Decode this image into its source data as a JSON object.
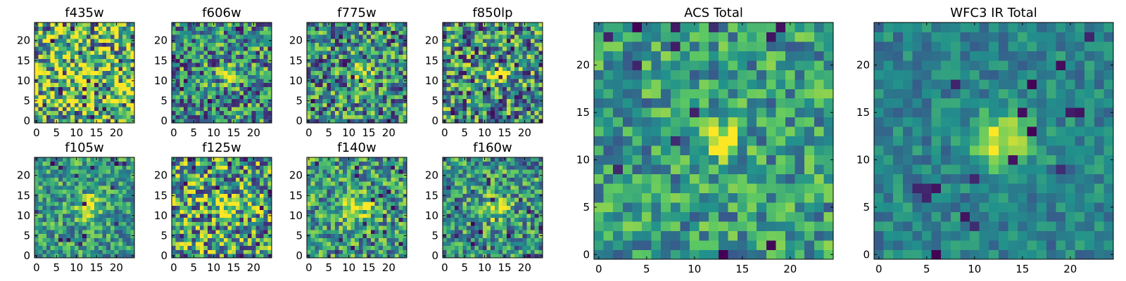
{
  "figure": {
    "colormap": "viridis",
    "colormap_stops": [
      "#440154",
      "#3b528b",
      "#21918c",
      "#5ec962",
      "#fde725"
    ]
  },
  "chart_data": [
    {
      "type": "heatmap",
      "title": "f435w",
      "grid": [
        25,
        25
      ],
      "xlim": [
        -0.5,
        24.5
      ],
      "ylim": [
        -0.5,
        24.5
      ],
      "xticks": [
        "0",
        "5",
        "10",
        "15",
        "20"
      ],
      "yticks": [
        "0",
        "5",
        "10",
        "15",
        "20"
      ],
      "source": {
        "x": 12,
        "y": 11,
        "strength": 0.15,
        "sigma": 2.0
      },
      "noise": 0.55,
      "background": 0.68,
      "seed": 11
    },
    {
      "type": "heatmap",
      "title": "f606w",
      "grid": [
        25,
        25
      ],
      "xlim": [
        -0.5,
        24.5
      ],
      "ylim": [
        -0.5,
        24.5
      ],
      "xticks": [
        "0",
        "5",
        "10",
        "15",
        "20"
      ],
      "yticks": [
        "0",
        "5",
        "10",
        "15",
        "20"
      ],
      "source": {
        "x": 13,
        "y": 12,
        "strength": 0.55,
        "sigma": 1.4
      },
      "noise": 0.4,
      "background": 0.5,
      "seed": 23
    },
    {
      "type": "heatmap",
      "title": "f775w",
      "grid": [
        25,
        25
      ],
      "xlim": [
        -0.5,
        24.5
      ],
      "ylim": [
        -0.5,
        24.5
      ],
      "xticks": [
        "0",
        "5",
        "10",
        "15",
        "20"
      ],
      "yticks": [
        "0",
        "5",
        "10",
        "15",
        "20"
      ],
      "source": {
        "x": 13,
        "y": 12,
        "strength": 0.5,
        "sigma": 1.5
      },
      "noise": 0.42,
      "background": 0.5,
      "seed": 37
    },
    {
      "type": "heatmap",
      "title": "f850lp",
      "grid": [
        25,
        25
      ],
      "xlim": [
        -0.5,
        24.5
      ],
      "ylim": [
        -0.5,
        24.5
      ],
      "xticks": [
        "0",
        "5",
        "10",
        "15",
        "20"
      ],
      "yticks": [
        "0",
        "5",
        "10",
        "15",
        "20"
      ],
      "source": {
        "x": 13,
        "y": 12,
        "strength": 0.45,
        "sigma": 1.6
      },
      "noise": 0.45,
      "background": 0.5,
      "seed": 41
    },
    {
      "type": "heatmap",
      "title": "f105w",
      "grid": [
        25,
        25
      ],
      "xlim": [
        -0.5,
        24.5
      ],
      "ylim": [
        -0.5,
        24.5
      ],
      "xticks": [
        "0",
        "5",
        "10",
        "15",
        "20"
      ],
      "yticks": [
        "0",
        "5",
        "10",
        "15",
        "20"
      ],
      "source": {
        "x": 13,
        "y": 12,
        "strength": 0.45,
        "sigma": 2.0
      },
      "noise": 0.3,
      "background": 0.55,
      "seed": 53
    },
    {
      "type": "heatmap",
      "title": "f125w",
      "grid": [
        25,
        25
      ],
      "xlim": [
        -0.5,
        24.5
      ],
      "ylim": [
        -0.5,
        24.5
      ],
      "xticks": [
        "0",
        "5",
        "10",
        "15",
        "20"
      ],
      "yticks": [
        "0",
        "5",
        "10",
        "15",
        "20"
      ],
      "source": {
        "x": 13,
        "y": 13,
        "strength": 0.35,
        "sigma": 2.0
      },
      "noise": 0.45,
      "background": 0.58,
      "seed": 67
    },
    {
      "type": "heatmap",
      "title": "f140w",
      "grid": [
        25,
        25
      ],
      "xlim": [
        -0.5,
        24.5
      ],
      "ylim": [
        -0.5,
        24.5
      ],
      "xticks": [
        "0",
        "5",
        "10",
        "15",
        "20"
      ],
      "yticks": [
        "0",
        "5",
        "10",
        "15",
        "20"
      ],
      "source": {
        "x": 12,
        "y": 12,
        "strength": 0.45,
        "sigma": 2.3
      },
      "noise": 0.35,
      "background": 0.55,
      "seed": 71
    },
    {
      "type": "heatmap",
      "title": "f160w",
      "grid": [
        25,
        25
      ],
      "xlim": [
        -0.5,
        24.5
      ],
      "ylim": [
        -0.5,
        24.5
      ],
      "xticks": [
        "0",
        "5",
        "10",
        "15",
        "20"
      ],
      "yticks": [
        "0",
        "5",
        "10",
        "15",
        "20"
      ],
      "source": {
        "x": 13,
        "y": 12,
        "strength": 0.45,
        "sigma": 2.0
      },
      "noise": 0.35,
      "background": 0.52,
      "seed": 83
    },
    {
      "type": "heatmap",
      "title": "ACS Total",
      "grid": [
        25,
        25
      ],
      "xlim": [
        -0.5,
        24.5
      ],
      "ylim": [
        -0.5,
        24.5
      ],
      "xticks": [
        "0",
        "5",
        "10",
        "15",
        "20"
      ],
      "yticks": [
        "0",
        "5",
        "10",
        "15",
        "20"
      ],
      "source": {
        "x": 13,
        "y": 12,
        "strength": 0.45,
        "sigma": 1.3
      },
      "noise": 0.28,
      "background": 0.55,
      "seed": 97
    },
    {
      "type": "heatmap",
      "title": "WFC3 IR Total",
      "grid": [
        25,
        25
      ],
      "xlim": [
        -0.5,
        24.5
      ],
      "ylim": [
        -0.5,
        24.5
      ],
      "xticks": [
        "0",
        "5",
        "10",
        "15",
        "20"
      ],
      "yticks": [
        "0",
        "5",
        "10",
        "15",
        "20"
      ],
      "source": {
        "x": 13,
        "y": 12,
        "strength": 0.5,
        "sigma": 2.2
      },
      "noise": 0.16,
      "background": 0.45,
      "seed": 101
    }
  ]
}
